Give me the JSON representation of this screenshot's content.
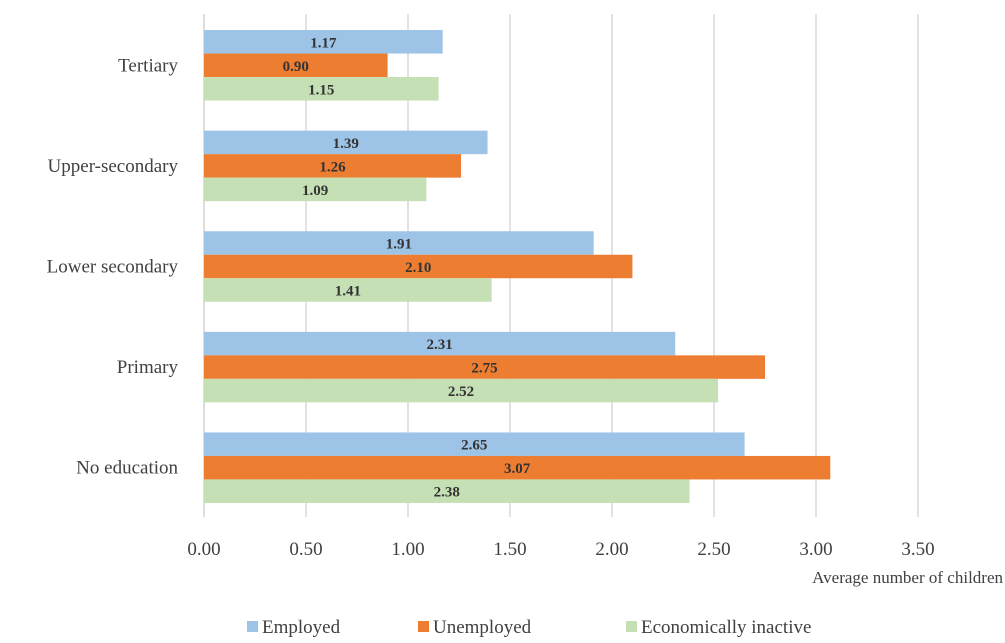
{
  "chart_data": {
    "type": "bar",
    "orientation": "horizontal",
    "categories": [
      "Tertiary",
      "Upper-secondary",
      "Lower secondary",
      "Primary",
      "No education"
    ],
    "series": [
      {
        "name": "Employed",
        "color": "#9dc3e6",
        "values": [
          1.17,
          1.39,
          1.91,
          2.31,
          2.65
        ],
        "labels": [
          "1.17",
          "1.39",
          "1.91",
          "2.31",
          "2.65"
        ]
      },
      {
        "name": "Unemployed",
        "color": "#ed7d31",
        "values": [
          0.9,
          1.26,
          2.1,
          2.75,
          3.07
        ],
        "labels": [
          "0.90",
          "1.26",
          "2.10",
          "2.75",
          "3.07"
        ]
      },
      {
        "name": "Economically inactive",
        "color": "#c5e0b4",
        "values": [
          1.15,
          1.09,
          1.41,
          2.52,
          2.38
        ],
        "labels": [
          "1.15",
          "1.09",
          "1.41",
          "2.52",
          "2.38"
        ]
      }
    ],
    "xlabel": "Average number of children",
    "xlim": [
      0,
      3.75
    ],
    "xticks": [
      "0.00",
      "0.50",
      "1.00",
      "1.50",
      "2.00",
      "2.50",
      "3.00",
      "3.50"
    ],
    "grid": true,
    "legend_position": "bottom"
  }
}
